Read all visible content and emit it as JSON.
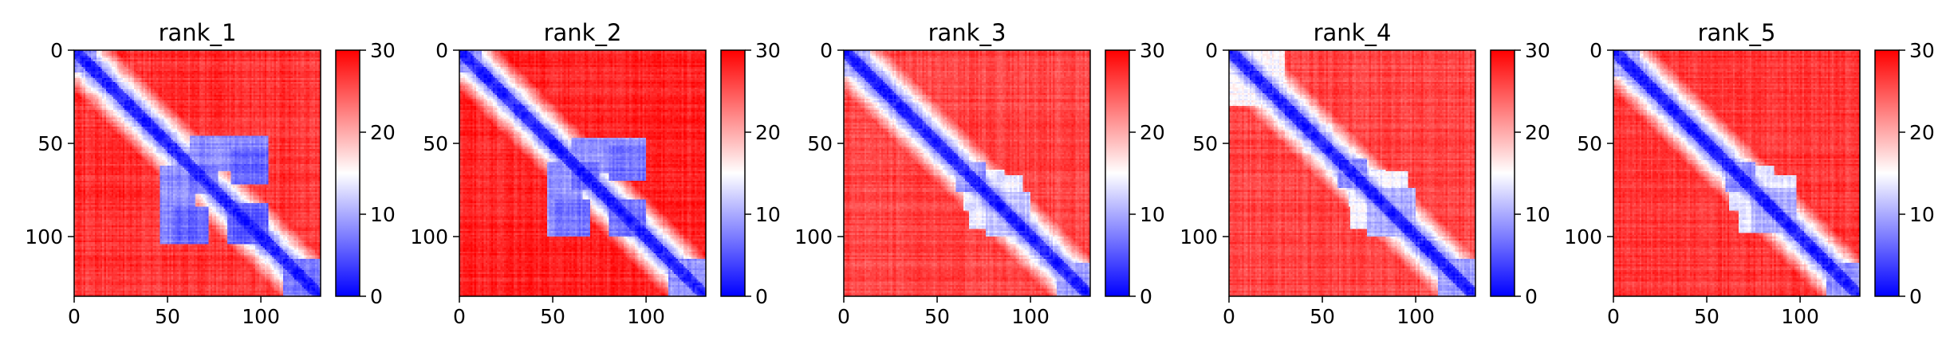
{
  "figure": {
    "colorbar": {
      "ticks": [
        0,
        10,
        20,
        30
      ],
      "vmin": 0,
      "vmax": 30,
      "colormap": "bwr",
      "low_color": "#0000ff",
      "mid_color": "#ffffff",
      "high_color": "#ff0000"
    }
  },
  "chart_data": [
    {
      "type": "heatmap",
      "title": "rank_1",
      "xlabel": "",
      "ylabel": "",
      "xlim": [
        0,
        132
      ],
      "ylim": [
        132,
        0
      ],
      "xticks": [
        0,
        50,
        100
      ],
      "yticks": [
        0,
        50,
        100
      ],
      "value_range": [
        0,
        30
      ],
      "pattern": {
        "blocks": [
          {
            "from": 0,
            "to": 12,
            "value": 8
          },
          {
            "from": 62,
            "to": 77,
            "value": 6
          },
          {
            "from": 82,
            "to": 104,
            "value": 5
          },
          {
            "from": 112,
            "to": 132,
            "value": 7
          }
        ],
        "crosses": [
          {
            "from": 62,
            "to": 104,
            "with": 55,
            "value": 8
          },
          {
            "from": 84,
            "to": 104,
            "with": 62,
            "value": 6
          }
        ],
        "background": 27,
        "diagonal_width": 5
      }
    },
    {
      "type": "heatmap",
      "title": "rank_2",
      "xlabel": "",
      "ylabel": "",
      "xlim": [
        0,
        132
      ],
      "ylim": [
        132,
        0
      ],
      "xticks": [
        0,
        50,
        100
      ],
      "yticks": [
        0,
        50,
        100
      ],
      "value_range": [
        0,
        30
      ],
      "pattern": {
        "blocks": [
          {
            "from": 0,
            "to": 12,
            "value": 8
          },
          {
            "from": 60,
            "to": 75,
            "value": 6
          },
          {
            "from": 80,
            "to": 100,
            "value": 6
          },
          {
            "from": 112,
            "to": 132,
            "value": 8
          }
        ],
        "crosses": [
          {
            "from": 60,
            "to": 100,
            "with": 56,
            "value": 9
          },
          {
            "from": 80,
            "to": 100,
            "with": 60,
            "value": 7
          }
        ],
        "background": 28,
        "diagonal_width": 5
      }
    },
    {
      "type": "heatmap",
      "title": "rank_3",
      "xlabel": "",
      "ylabel": "",
      "xlim": [
        0,
        132
      ],
      "ylim": [
        132,
        0
      ],
      "xticks": [
        0,
        50,
        100
      ],
      "yticks": [
        0,
        50,
        100
      ],
      "value_range": [
        0,
        30
      ],
      "pattern": {
        "blocks": [
          {
            "from": 0,
            "to": 14,
            "value": 10
          },
          {
            "from": 60,
            "to": 76,
            "value": 8
          },
          {
            "from": 76,
            "to": 100,
            "value": 11
          },
          {
            "from": 114,
            "to": 132,
            "value": 9
          }
        ],
        "crosses": [
          {
            "from": 64,
            "to": 96,
            "with": 76,
            "value": 14
          }
        ],
        "background": 26,
        "diagonal_width": 5
      }
    },
    {
      "type": "heatmap",
      "title": "rank_4",
      "xlabel": "",
      "ylabel": "",
      "xlim": [
        0,
        132
      ],
      "ylim": [
        132,
        0
      ],
      "xticks": [
        0,
        50,
        100
      ],
      "yticks": [
        0,
        50,
        100
      ],
      "value_range": [
        0,
        30
      ],
      "pattern": {
        "blocks": [
          {
            "from": 0,
            "to": 30,
            "value": 14
          },
          {
            "from": 58,
            "to": 74,
            "value": 8
          },
          {
            "from": 74,
            "to": 100,
            "value": 10
          },
          {
            "from": 112,
            "to": 132,
            "value": 9
          }
        ],
        "crosses": [
          {
            "from": 64,
            "to": 96,
            "with": 74,
            "value": 14
          }
        ],
        "background": 26,
        "diagonal_width": 5
      }
    },
    {
      "type": "heatmap",
      "title": "rank_5",
      "xlabel": "",
      "ylabel": "",
      "xlim": [
        0,
        132
      ],
      "ylim": [
        132,
        0
      ],
      "xticks": [
        0,
        50,
        100
      ],
      "yticks": [
        0,
        50,
        100
      ],
      "value_range": [
        0,
        30
      ],
      "pattern": {
        "blocks": [
          {
            "from": 0,
            "to": 14,
            "value": 10
          },
          {
            "from": 60,
            "to": 76,
            "value": 8
          },
          {
            "from": 74,
            "to": 98,
            "value": 10
          },
          {
            "from": 114,
            "to": 132,
            "value": 8
          }
        ],
        "crosses": [
          {
            "from": 62,
            "to": 98,
            "with": 76,
            "value": 14
          }
        ],
        "background": 27,
        "diagonal_width": 5
      }
    }
  ]
}
